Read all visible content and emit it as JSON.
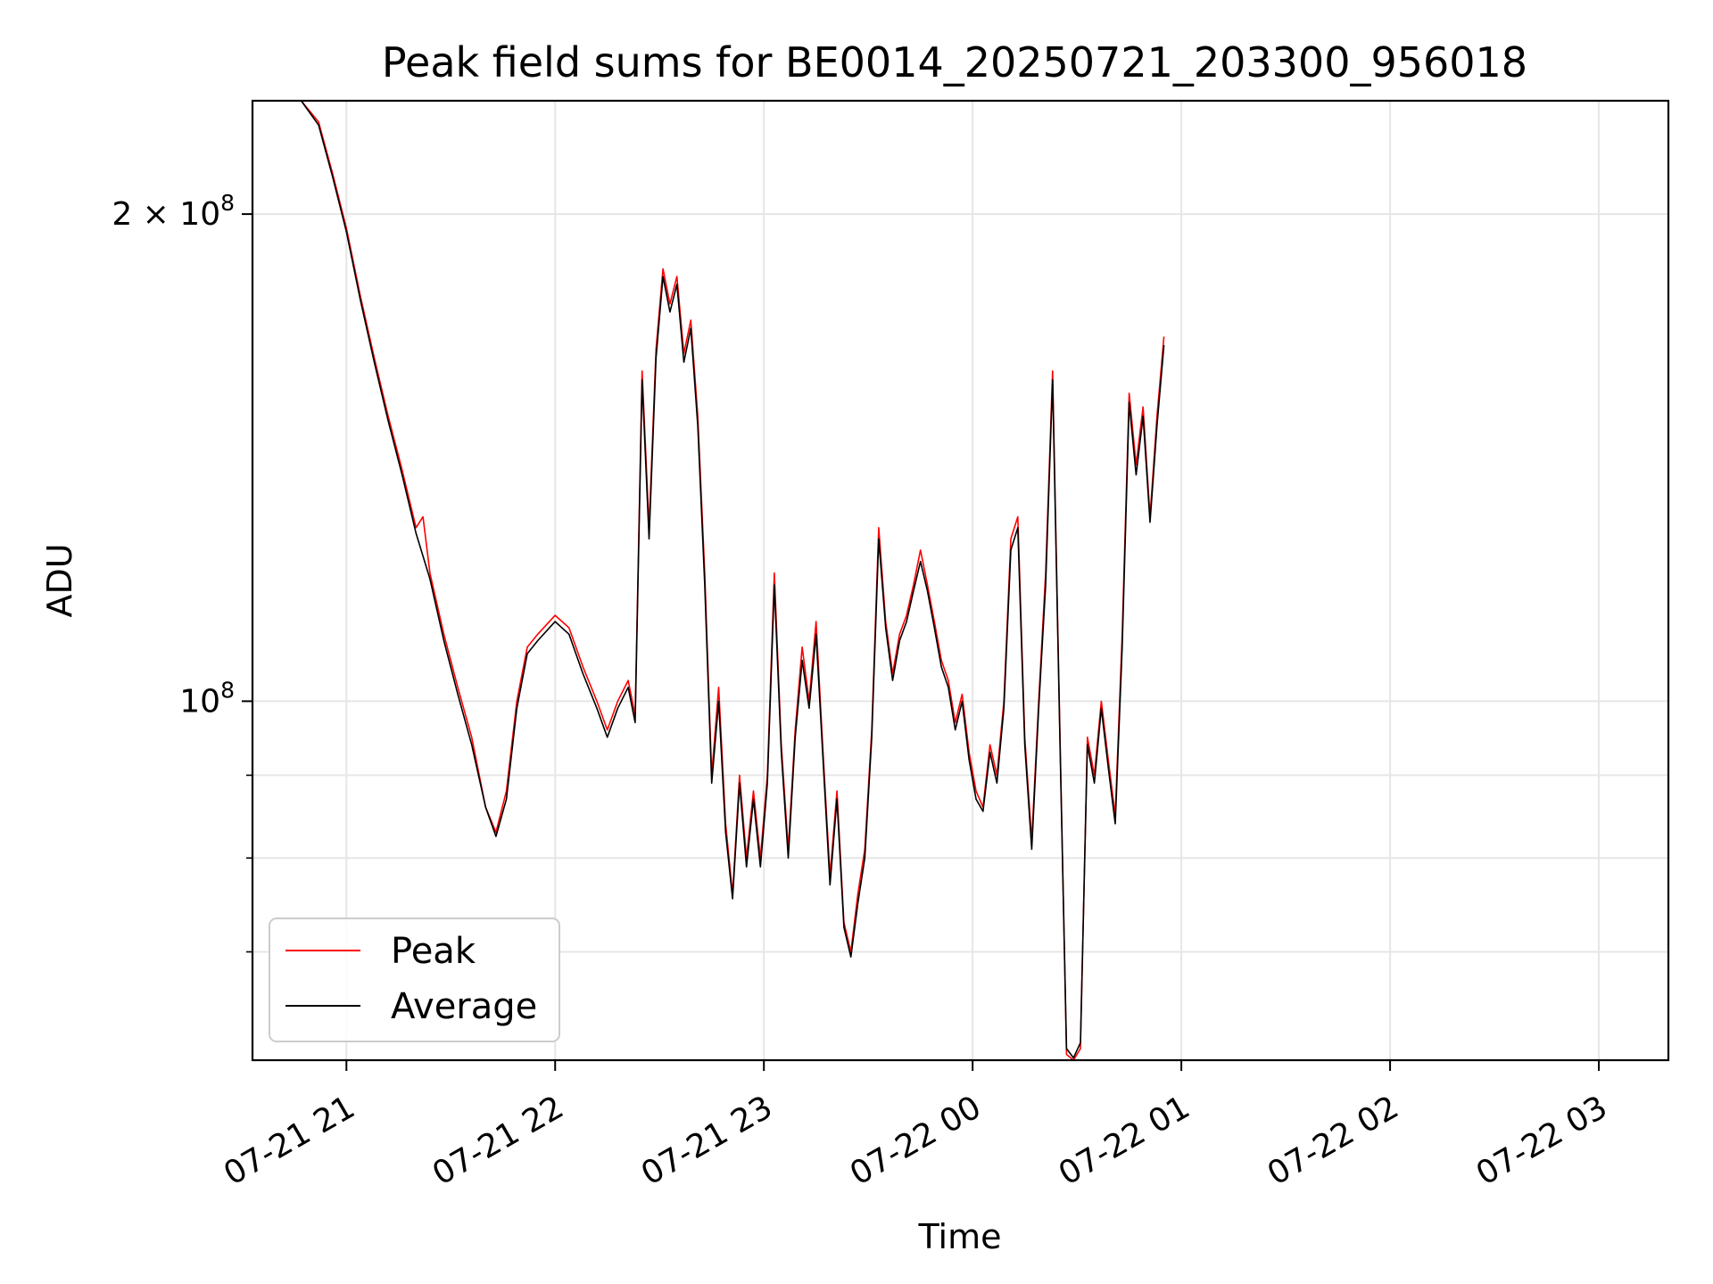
{
  "chart_data": {
    "type": "line",
    "title": "Peak field sums for BE0014_20250721_203300_956018",
    "xlabel": "Time",
    "ylabel": "ADU",
    "y_scale": "log",
    "ylim": [
      60000000,
      235000000
    ],
    "xlim": [
      "2025-07-21 20:33",
      "2025-07-22 03:20"
    ],
    "x_ticks": [
      {
        "t": "2025-07-21 21:00",
        "label": "07-21 21"
      },
      {
        "t": "2025-07-21 22:00",
        "label": "07-21 22"
      },
      {
        "t": "2025-07-21 23:00",
        "label": "07-21 23"
      },
      {
        "t": "2025-07-22 00:00",
        "label": "07-22 00"
      },
      {
        "t": "2025-07-22 01:00",
        "label": "07-22 01"
      },
      {
        "t": "2025-07-22 02:00",
        "label": "07-22 02"
      },
      {
        "t": "2025-07-22 03:00",
        "label": "07-22 03"
      }
    ],
    "y_major_ticks": [
      {
        "value": 100000000,
        "label": "10^8"
      },
      {
        "value": 200000000,
        "label": "2 × 10^8"
      }
    ],
    "y_minor_ticks": [
      70000000,
      80000000,
      90000000
    ],
    "grid": true,
    "legend_position": "lower-left",
    "series": [
      {
        "name": "Peak",
        "color": "#ff0000",
        "points": [
          [
            "2025-07-21 20:33",
            235000000
          ],
          [
            "2025-07-21 20:47",
            235000000
          ],
          [
            "2025-07-21 20:52",
            228000000
          ],
          [
            "2025-07-21 20:56",
            212000000
          ],
          [
            "2025-07-21 21:00",
            196000000
          ],
          [
            "2025-07-21 21:04",
            178000000
          ],
          [
            "2025-07-21 21:08",
            163000000
          ],
          [
            "2025-07-21 21:12",
            150000000
          ],
          [
            "2025-07-21 21:16",
            139000000
          ],
          [
            "2025-07-21 21:20",
            128000000
          ],
          [
            "2025-07-21 21:22",
            130000000
          ],
          [
            "2025-07-21 21:24",
            120000000
          ],
          [
            "2025-07-21 21:28",
            110000000
          ],
          [
            "2025-07-21 21:32",
            102000000
          ],
          [
            "2025-07-21 21:36",
            95000000
          ],
          [
            "2025-07-21 21:40",
            86000000
          ],
          [
            "2025-07-21 21:43",
            83000000
          ],
          [
            "2025-07-21 21:46",
            88000000
          ],
          [
            "2025-07-21 21:49",
            100000000
          ],
          [
            "2025-07-21 21:52",
            108000000
          ],
          [
            "2025-07-21 21:55",
            110000000
          ],
          [
            "2025-07-21 22:00",
            113000000
          ],
          [
            "2025-07-21 22:04",
            111000000
          ],
          [
            "2025-07-21 22:08",
            105000000
          ],
          [
            "2025-07-21 22:12",
            100000000
          ],
          [
            "2025-07-21 22:15",
            96000000
          ],
          [
            "2025-07-21 22:18",
            100000000
          ],
          [
            "2025-07-21 22:21",
            103000000
          ],
          [
            "2025-07-21 22:23",
            98000000
          ],
          [
            "2025-07-21 22:25",
            160000000
          ],
          [
            "2025-07-21 22:27",
            128000000
          ],
          [
            "2025-07-21 22:29",
            165000000
          ],
          [
            "2025-07-21 22:31",
            185000000
          ],
          [
            "2025-07-21 22:33",
            176000000
          ],
          [
            "2025-07-21 22:35",
            183000000
          ],
          [
            "2025-07-21 22:37",
            164000000
          ],
          [
            "2025-07-21 22:39",
            172000000
          ],
          [
            "2025-07-21 22:41",
            150000000
          ],
          [
            "2025-07-21 22:43",
            120000000
          ],
          [
            "2025-07-21 22:45",
            90000000
          ],
          [
            "2025-07-21 22:47",
            102000000
          ],
          [
            "2025-07-21 22:49",
            84000000
          ],
          [
            "2025-07-21 22:51",
            76000000
          ],
          [
            "2025-07-21 22:53",
            90000000
          ],
          [
            "2025-07-21 22:55",
            80000000
          ],
          [
            "2025-07-21 22:57",
            88000000
          ],
          [
            "2025-07-21 22:59",
            80000000
          ],
          [
            "2025-07-21 23:01",
            90000000
          ],
          [
            "2025-07-21 23:03",
            120000000
          ],
          [
            "2025-07-21 23:05",
            94000000
          ],
          [
            "2025-07-21 23:07",
            81000000
          ],
          [
            "2025-07-21 23:09",
            96000000
          ],
          [
            "2025-07-21 23:11",
            108000000
          ],
          [
            "2025-07-21 23:13",
            100000000
          ],
          [
            "2025-07-21 23:15",
            112000000
          ],
          [
            "2025-07-21 23:17",
            93000000
          ],
          [
            "2025-07-21 23:19",
            78000000
          ],
          [
            "2025-07-21 23:21",
            88000000
          ],
          [
            "2025-07-21 23:23",
            73000000
          ],
          [
            "2025-07-21 23:25",
            70000000
          ],
          [
            "2025-07-21 23:27",
            76000000
          ],
          [
            "2025-07-21 23:29",
            81000000
          ],
          [
            "2025-07-21 23:31",
            96000000
          ],
          [
            "2025-07-21 23:33",
            128000000
          ],
          [
            "2025-07-21 23:35",
            112000000
          ],
          [
            "2025-07-21 23:37",
            104000000
          ],
          [
            "2025-07-21 23:39",
            110000000
          ],
          [
            "2025-07-21 23:41",
            113000000
          ],
          [
            "2025-07-21 23:43",
            118000000
          ],
          [
            "2025-07-21 23:45",
            124000000
          ],
          [
            "2025-07-21 23:47",
            118000000
          ],
          [
            "2025-07-21 23:49",
            112000000
          ],
          [
            "2025-07-21 23:51",
            106000000
          ],
          [
            "2025-07-21 23:53",
            103000000
          ],
          [
            "2025-07-21 23:55",
            97000000
          ],
          [
            "2025-07-21 23:57",
            101000000
          ],
          [
            "2025-07-21 23:59",
            93000000
          ],
          [
            "2025-07-22 00:01",
            88000000
          ],
          [
            "2025-07-22 00:03",
            86000000
          ],
          [
            "2025-07-22 00:05",
            94000000
          ],
          [
            "2025-07-22 00:07",
            90000000
          ],
          [
            "2025-07-22 00:09",
            100000000
          ],
          [
            "2025-07-22 00:11",
            126000000
          ],
          [
            "2025-07-22 00:13",
            130000000
          ],
          [
            "2025-07-22 00:15",
            95000000
          ],
          [
            "2025-07-22 00:17",
            82000000
          ],
          [
            "2025-07-22 00:19",
            100000000
          ],
          [
            "2025-07-22 00:21",
            120000000
          ],
          [
            "2025-07-22 00:23",
            160000000
          ],
          [
            "2025-07-22 00:25",
            98000000
          ],
          [
            "2025-07-22 00:27",
            60500000
          ],
          [
            "2025-07-22 00:29",
            60000000
          ],
          [
            "2025-07-22 00:31",
            61000000
          ],
          [
            "2025-07-22 00:33",
            95000000
          ],
          [
            "2025-07-22 00:35",
            90000000
          ],
          [
            "2025-07-22 00:37",
            100000000
          ],
          [
            "2025-07-22 00:39",
            92000000
          ],
          [
            "2025-07-22 00:41",
            85000000
          ],
          [
            "2025-07-22 00:43",
            110000000
          ],
          [
            "2025-07-22 00:45",
            155000000
          ],
          [
            "2025-07-22 00:47",
            140000000
          ],
          [
            "2025-07-22 00:49",
            152000000
          ],
          [
            "2025-07-22 00:51",
            130000000
          ],
          [
            "2025-07-22 00:53",
            150000000
          ],
          [
            "2025-07-22 00:55",
            168000000
          ]
        ]
      },
      {
        "name": "Average",
        "color": "#000000",
        "points": [
          [
            "2025-07-21 20:33",
            235000000
          ],
          [
            "2025-07-21 20:47",
            235000000
          ],
          [
            "2025-07-21 20:52",
            227000000
          ],
          [
            "2025-07-21 20:56",
            211000000
          ],
          [
            "2025-07-21 21:00",
            195000000
          ],
          [
            "2025-07-21 21:04",
            177000000
          ],
          [
            "2025-07-21 21:08",
            162000000
          ],
          [
            "2025-07-21 21:12",
            149000000
          ],
          [
            "2025-07-21 21:16",
            138000000
          ],
          [
            "2025-07-21 21:20",
            127000000
          ],
          [
            "2025-07-21 21:24",
            119000000
          ],
          [
            "2025-07-21 21:28",
            109000000
          ],
          [
            "2025-07-21 21:32",
            101000000
          ],
          [
            "2025-07-21 21:36",
            94000000
          ],
          [
            "2025-07-21 21:40",
            86000000
          ],
          [
            "2025-07-21 21:43",
            82500000
          ],
          [
            "2025-07-21 21:46",
            87000000
          ],
          [
            "2025-07-21 21:49",
            99000000
          ],
          [
            "2025-07-21 21:52",
            107000000
          ],
          [
            "2025-07-21 21:55",
            109000000
          ],
          [
            "2025-07-21 22:00",
            112000000
          ],
          [
            "2025-07-21 22:04",
            110000000
          ],
          [
            "2025-07-21 22:08",
            104000000
          ],
          [
            "2025-07-21 22:12",
            99000000
          ],
          [
            "2025-07-21 22:15",
            95000000
          ],
          [
            "2025-07-21 22:18",
            99000000
          ],
          [
            "2025-07-21 22:21",
            102000000
          ],
          [
            "2025-07-21 22:23",
            97000000
          ],
          [
            "2025-07-21 22:25",
            158000000
          ],
          [
            "2025-07-21 22:27",
            126000000
          ],
          [
            "2025-07-21 22:29",
            163000000
          ],
          [
            "2025-07-21 22:31",
            183000000
          ],
          [
            "2025-07-21 22:33",
            174000000
          ],
          [
            "2025-07-21 22:35",
            181000000
          ],
          [
            "2025-07-21 22:37",
            162000000
          ],
          [
            "2025-07-21 22:39",
            170000000
          ],
          [
            "2025-07-21 22:41",
            148000000
          ],
          [
            "2025-07-21 22:43",
            118000000
          ],
          [
            "2025-07-21 22:45",
            89000000
          ],
          [
            "2025-07-21 22:47",
            100000000
          ],
          [
            "2025-07-21 22:49",
            83000000
          ],
          [
            "2025-07-21 22:51",
            75500000
          ],
          [
            "2025-07-21 22:53",
            89000000
          ],
          [
            "2025-07-21 22:55",
            79000000
          ],
          [
            "2025-07-21 22:57",
            87000000
          ],
          [
            "2025-07-21 22:59",
            79000000
          ],
          [
            "2025-07-21 23:01",
            89000000
          ],
          [
            "2025-07-21 23:03",
            118000000
          ],
          [
            "2025-07-21 23:05",
            93000000
          ],
          [
            "2025-07-21 23:07",
            80000000
          ],
          [
            "2025-07-21 23:09",
            95000000
          ],
          [
            "2025-07-21 23:11",
            106000000
          ],
          [
            "2025-07-21 23:13",
            99000000
          ],
          [
            "2025-07-21 23:15",
            110000000
          ],
          [
            "2025-07-21 23:17",
            92000000
          ],
          [
            "2025-07-21 23:19",
            77000000
          ],
          [
            "2025-07-21 23:21",
            87000000
          ],
          [
            "2025-07-21 23:23",
            72500000
          ],
          [
            "2025-07-21 23:25",
            69500000
          ],
          [
            "2025-07-21 23:27",
            75000000
          ],
          [
            "2025-07-21 23:29",
            80000000
          ],
          [
            "2025-07-21 23:31",
            95000000
          ],
          [
            "2025-07-21 23:33",
            126000000
          ],
          [
            "2025-07-21 23:35",
            111000000
          ],
          [
            "2025-07-21 23:37",
            103000000
          ],
          [
            "2025-07-21 23:39",
            109000000
          ],
          [
            "2025-07-21 23:41",
            112000000
          ],
          [
            "2025-07-21 23:43",
            117000000
          ],
          [
            "2025-07-21 23:45",
            122000000
          ],
          [
            "2025-07-21 23:47",
            117000000
          ],
          [
            "2025-07-21 23:49",
            111000000
          ],
          [
            "2025-07-21 23:51",
            105000000
          ],
          [
            "2025-07-21 23:53",
            102000000
          ],
          [
            "2025-07-21 23:55",
            96000000
          ],
          [
            "2025-07-21 23:57",
            100000000
          ],
          [
            "2025-07-21 23:59",
            92000000
          ],
          [
            "2025-07-22 00:01",
            87000000
          ],
          [
            "2025-07-22 00:03",
            85500000
          ],
          [
            "2025-07-22 00:05",
            93000000
          ],
          [
            "2025-07-22 00:07",
            89000000
          ],
          [
            "2025-07-22 00:09",
            99000000
          ],
          [
            "2025-07-22 00:11",
            124000000
          ],
          [
            "2025-07-22 00:13",
            128000000
          ],
          [
            "2025-07-22 00:15",
            94000000
          ],
          [
            "2025-07-22 00:17",
            81000000
          ],
          [
            "2025-07-22 00:19",
            99000000
          ],
          [
            "2025-07-22 00:21",
            118000000
          ],
          [
            "2025-07-22 00:23",
            158000000
          ],
          [
            "2025-07-22 00:25",
            97000000
          ],
          [
            "2025-07-22 00:27",
            61000000
          ],
          [
            "2025-07-22 00:29",
            60200000
          ],
          [
            "2025-07-22 00:31",
            61500000
          ],
          [
            "2025-07-22 00:33",
            94000000
          ],
          [
            "2025-07-22 00:35",
            89000000
          ],
          [
            "2025-07-22 00:37",
            99000000
          ],
          [
            "2025-07-22 00:39",
            91000000
          ],
          [
            "2025-07-22 00:41",
            84000000
          ],
          [
            "2025-07-22 00:43",
            108000000
          ],
          [
            "2025-07-22 00:45",
            153000000
          ],
          [
            "2025-07-22 00:47",
            138000000
          ],
          [
            "2025-07-22 00:49",
            150000000
          ],
          [
            "2025-07-22 00:51",
            129000000
          ],
          [
            "2025-07-22 00:53",
            148000000
          ],
          [
            "2025-07-22 00:55",
            166000000
          ]
        ]
      }
    ]
  }
}
